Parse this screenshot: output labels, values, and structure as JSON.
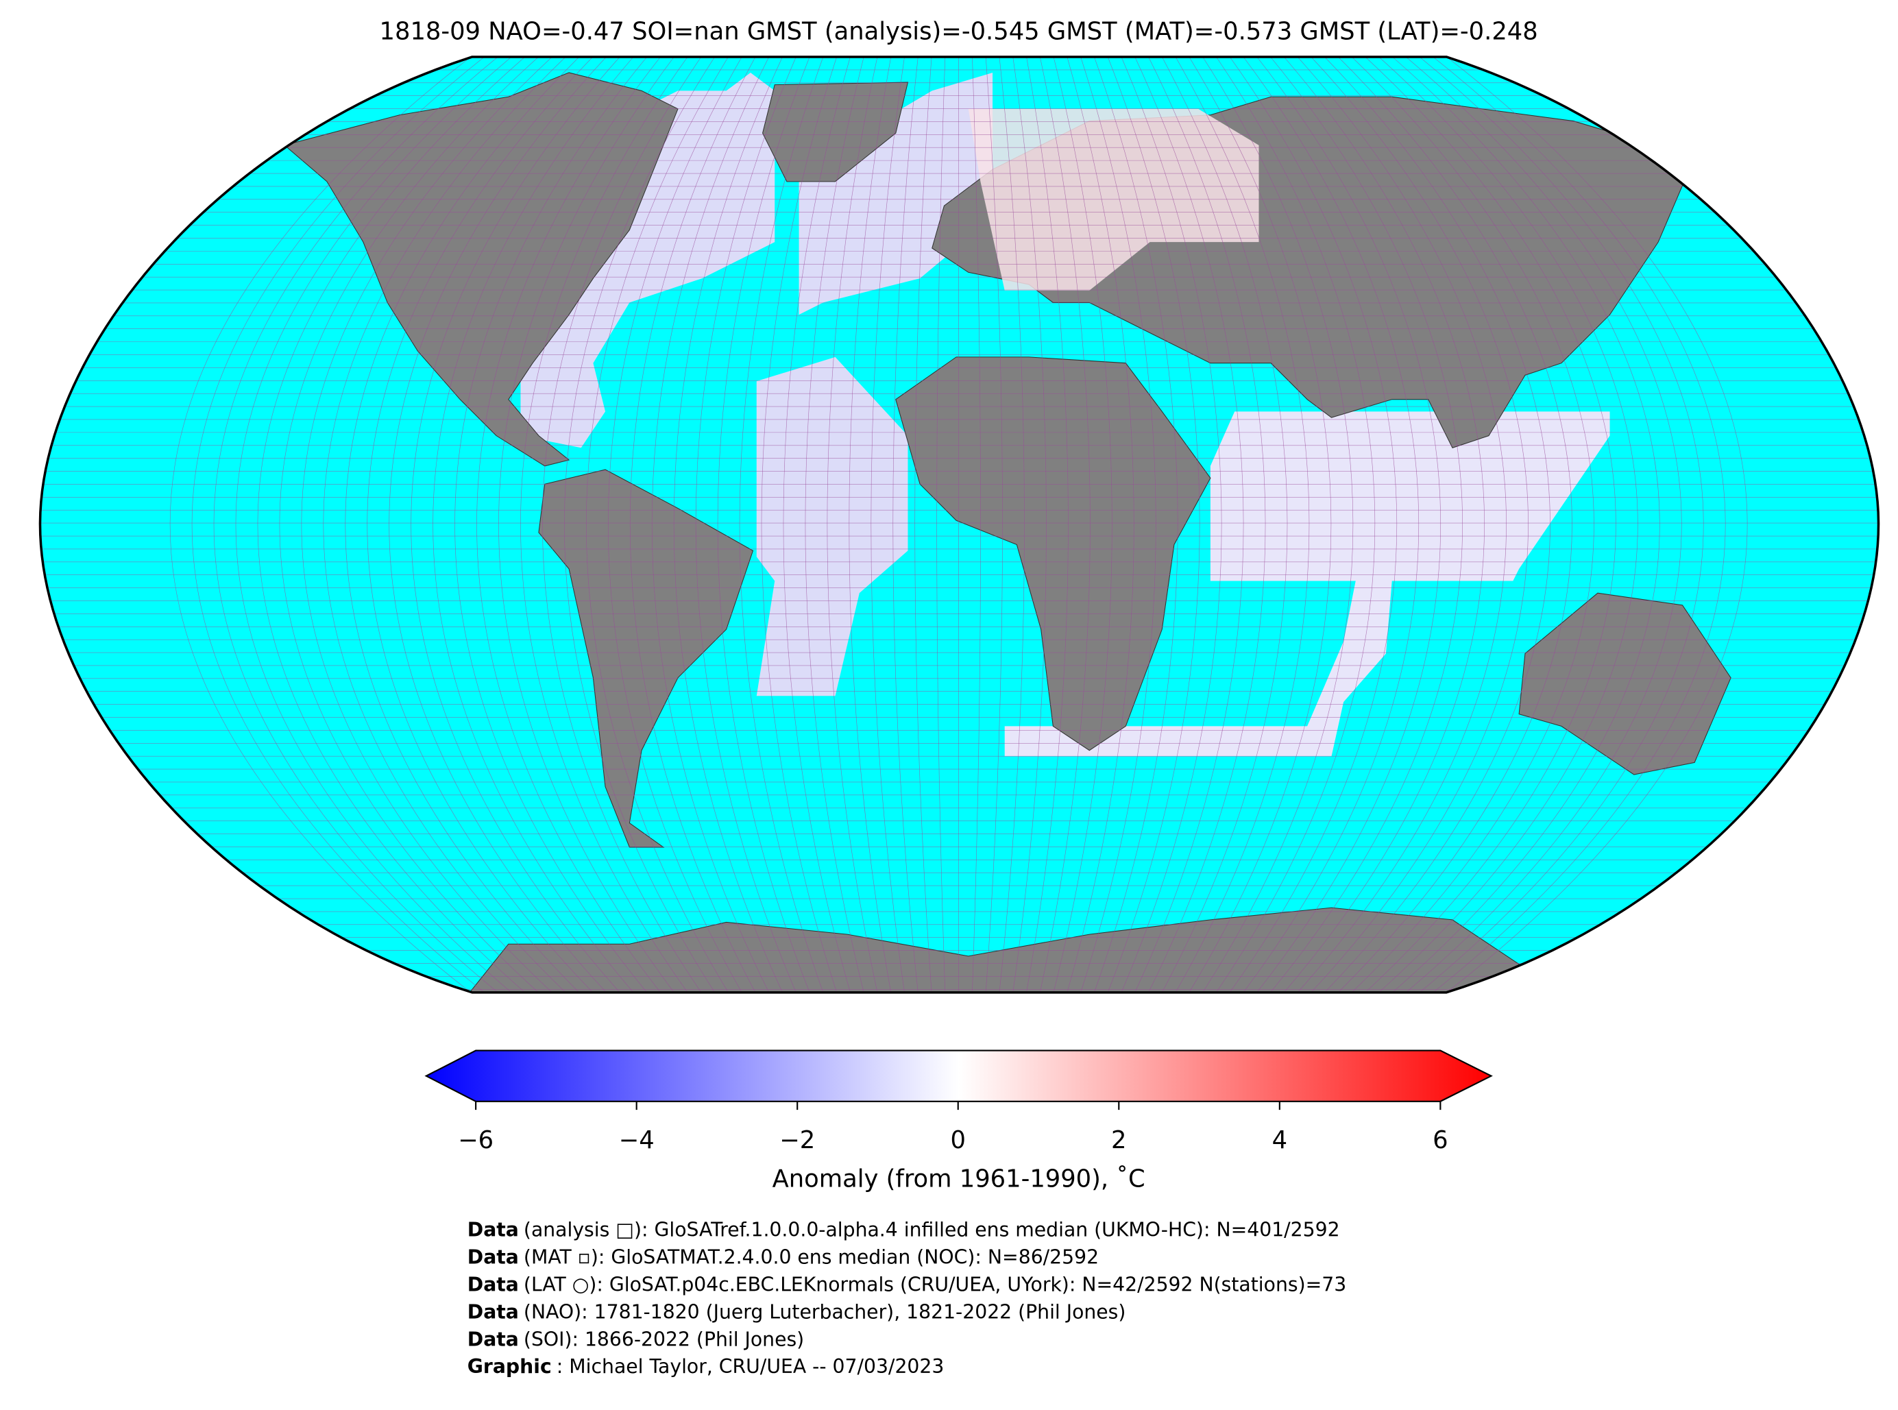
{
  "title": "1818-09 NAO=-0.47 SOI=nan GMST (analysis)=-0.545 GMST (MAT)=-0.573 GMST (LAT)=-0.248",
  "colorbar": {
    "label": "Anomaly (from 1961-1990), ˚C",
    "lim": [
      -6,
      6
    ],
    "ticks": [
      {
        "value": -6,
        "label": "−6"
      },
      {
        "value": -4,
        "label": "−4"
      },
      {
        "value": -2,
        "label": "−2"
      },
      0,
      2,
      4,
      6
    ],
    "colors": [
      "#0000ff",
      "#ffffff",
      "#ff0000"
    ]
  },
  "credits": [
    {
      "bold": "Data",
      "text": "(analysis □): GloSATref.1.0.0.0-alpha.4 infilled ens median (UKMO-HC): N=401/2592"
    },
    {
      "bold": "Data",
      "text": "(MAT ▫): GloSATMAT.2.4.0.0 ens median (NOC): N=86/2592"
    },
    {
      "bold": "Data",
      "text": "(LAT ○): GloSAT.p04c.EBC.LEKnormals (CRU/UEA, UYork): N=42/2592 N(stations)=73"
    },
    {
      "bold": "Data",
      "text": "(NAO): 1781-1820 (Juerg Luterbacher), 1821-2022 (Phil Jones)"
    },
    {
      "bold": "Data",
      "text": "(SOI): 1866-2022 (Phil Jones)"
    },
    {
      "bold": "Graphic",
      "text": ": Michael Taylor, CRU/UEA -- 07/03/2023"
    }
  ]
}
